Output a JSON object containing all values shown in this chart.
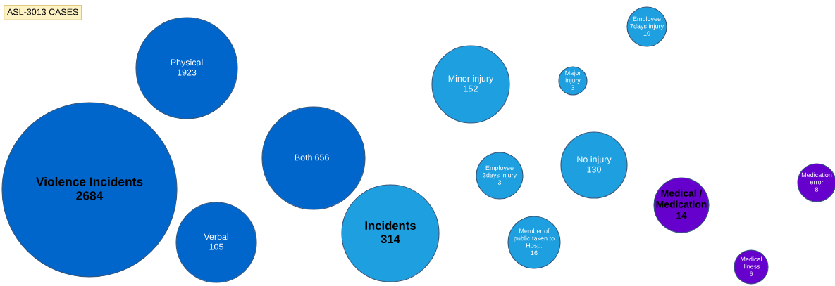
{
  "chart_data": {
    "type": "other",
    "title": "ASL-3013 CASES",
    "data_labels": true,
    "categories": [
      "Violence Incidents",
      "Physical",
      "Both",
      "Verbal",
      "Incidents",
      "Minor injury",
      "Major\ninjury",
      "Employee\n7days injury",
      "Employee\n3days injury",
      "No injury",
      "Member of\npublic taken to\nHosp.",
      "Medical /\nMedication",
      "Medication\nerror",
      "Medical\nIllness"
    ],
    "values": [
      2684,
      1923,
      656,
      105,
      314,
      152,
      3,
      10,
      3,
      130,
      16,
      14,
      8,
      6
    ],
    "colors": [
      "#0066cc",
      "#0066cc",
      "#0066cc",
      "#0066cc",
      "#1ea0e0",
      "#1ea0e0",
      "#1ea0e0",
      "#1ea0e0",
      "#1ea0e0",
      "#1ea0e0",
      "#1ea0e0",
      "#6600cc",
      "#6600cc",
      "#6600cc"
    ]
  }
}
